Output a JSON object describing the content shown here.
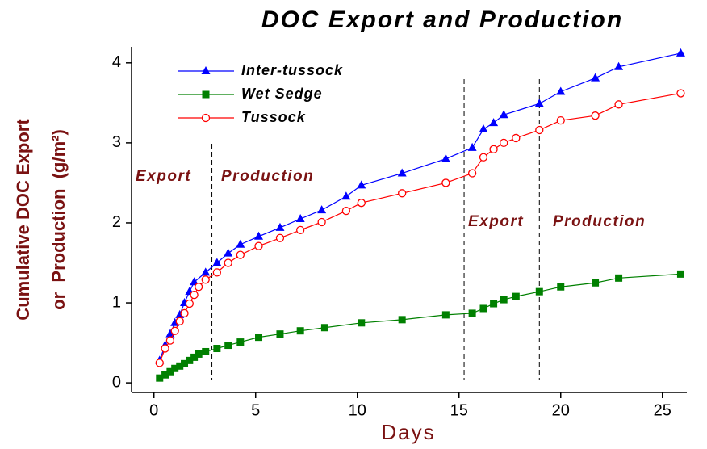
{
  "chart_data": {
    "type": "line",
    "title": "DOC Export and Production",
    "x_label": "Days",
    "y_label": [
      "Cumulative DOC Export",
      "or  Production  (g/m²)"
    ],
    "xlim": [
      -1.1,
      26.2
    ],
    "xticks": [
      0,
      5,
      10,
      15,
      20,
      25
    ],
    "ylim": [
      -0.12,
      4.2
    ],
    "yticks": [
      0,
      1,
      2,
      3,
      4
    ],
    "vlines": [
      2.85,
      15.25,
      18.95
    ],
    "annotations": [
      "Export",
      "Production",
      "Export",
      "Production"
    ],
    "series": [
      {
        "name": "Inter-tussock",
        "color": "#0000ff",
        "marker": "triangle",
        "x": [
          0.28,
          0.55,
          0.8,
          1.03,
          1.27,
          1.5,
          1.75,
          1.98,
          2.54,
          3.1,
          3.65,
          4.25,
          5.15,
          6.2,
          7.2,
          8.25,
          9.45,
          10.2,
          12.2,
          14.35,
          15.65,
          16.2,
          16.7,
          17.2,
          18.95,
          20,
          21.7,
          22.85,
          25.9
        ],
        "values": [
          0.28,
          0.47,
          0.61,
          0.75,
          0.85,
          1.0,
          1.14,
          1.26,
          1.38,
          1.5,
          1.62,
          1.73,
          1.83,
          1.94,
          2.05,
          2.16,
          2.33,
          2.47,
          2.62,
          2.8,
          2.94,
          3.17,
          3.25,
          3.35,
          3.49,
          3.64,
          3.81,
          3.95,
          4.12
        ]
      },
      {
        "name": "Wet Sedge",
        "color": "#008000",
        "marker": "square",
        "x": [
          0.28,
          0.55,
          0.8,
          1.03,
          1.27,
          1.5,
          1.75,
          1.98,
          2.2,
          2.54,
          3.1,
          3.65,
          4.25,
          5.15,
          6.2,
          7.2,
          8.4,
          10.2,
          12.2,
          14.35,
          15.65,
          16.2,
          16.7,
          17.2,
          17.8,
          18.95,
          20,
          21.7,
          22.85,
          25.9
        ],
        "values": [
          0.06,
          0.1,
          0.14,
          0.18,
          0.21,
          0.24,
          0.28,
          0.32,
          0.36,
          0.39,
          0.43,
          0.47,
          0.51,
          0.57,
          0.61,
          0.65,
          0.69,
          0.75,
          0.79,
          0.85,
          0.87,
          0.93,
          0.99,
          1.04,
          1.08,
          1.14,
          1.2,
          1.25,
          1.31,
          1.36
        ]
      },
      {
        "name": "Tussock",
        "color": "#ff0000",
        "marker": "circle",
        "x": [
          0.28,
          0.55,
          0.8,
          1.03,
          1.27,
          1.5,
          1.75,
          1.98,
          2.2,
          2.54,
          3.1,
          3.65,
          4.25,
          5.15,
          6.2,
          7.2,
          8.25,
          9.45,
          10.2,
          12.2,
          14.35,
          15.65,
          16.2,
          16.7,
          17.2,
          17.8,
          18.95,
          20,
          21.7,
          22.85,
          25.9
        ],
        "values": [
          0.25,
          0.43,
          0.53,
          0.65,
          0.77,
          0.87,
          0.99,
          1.1,
          1.2,
          1.29,
          1.38,
          1.5,
          1.6,
          1.71,
          1.81,
          1.91,
          2.01,
          2.15,
          2.25,
          2.37,
          2.5,
          2.62,
          2.82,
          2.92,
          3.0,
          3.06,
          3.16,
          3.28,
          3.34,
          3.48,
          3.62
        ]
      }
    ]
  }
}
